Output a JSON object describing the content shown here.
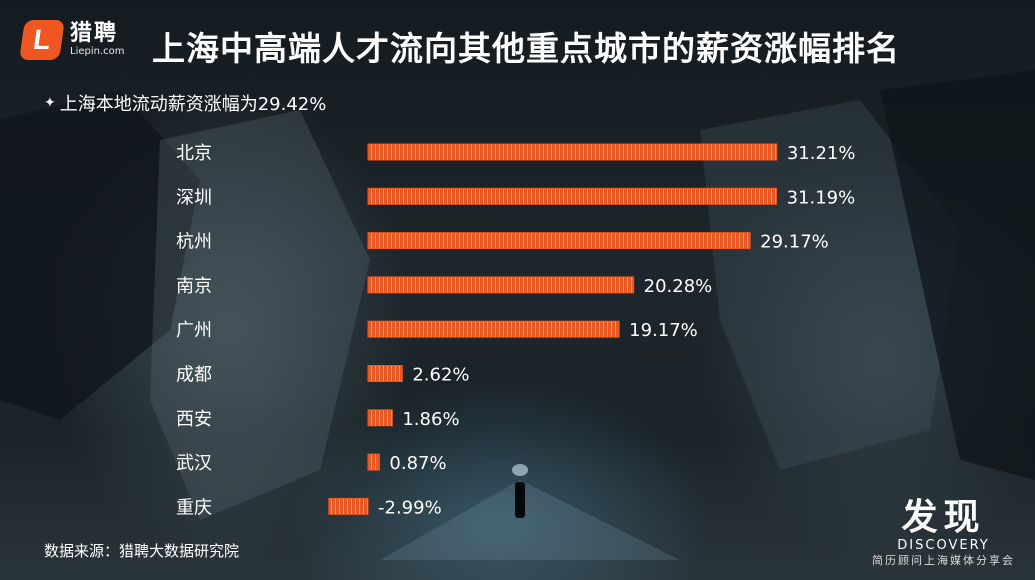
{
  "header": {
    "logo_mark": "L",
    "logo_cn": "猎聘",
    "logo_en": "Liepin.com",
    "title": "上海中高端人才流向其他重点城市的薪资涨幅排名"
  },
  "subtitle": "上海本地流动薪资涨幅为29.42%",
  "footer": {
    "source": "数据来源：猎聘大数据研究院",
    "brand_cn": "发现",
    "brand_en": "DISCOVERY",
    "brand_sub": "简历顾问上海媒体分享会"
  },
  "colors": {
    "bar": "#f0561f",
    "bar_stripe": "#ffffff",
    "text": "#ffffff"
  },
  "chart_data": {
    "type": "bar",
    "orientation": "horizontal",
    "categories": [
      "北京",
      "深圳",
      "杭州",
      "南京",
      "广州",
      "成都",
      "西安",
      "武汉",
      "重庆"
    ],
    "values": [
      31.21,
      31.19,
      29.17,
      20.28,
      19.17,
      2.62,
      1.86,
      0.87,
      -2.99
    ],
    "value_labels": [
      "31.21%",
      "31.19%",
      "29.17%",
      "20.28%",
      "19.17%",
      "2.62%",
      "1.86%",
      "0.87%",
      "-2.99%"
    ],
    "unit": "%",
    "grid": false,
    "legend": "none"
  }
}
